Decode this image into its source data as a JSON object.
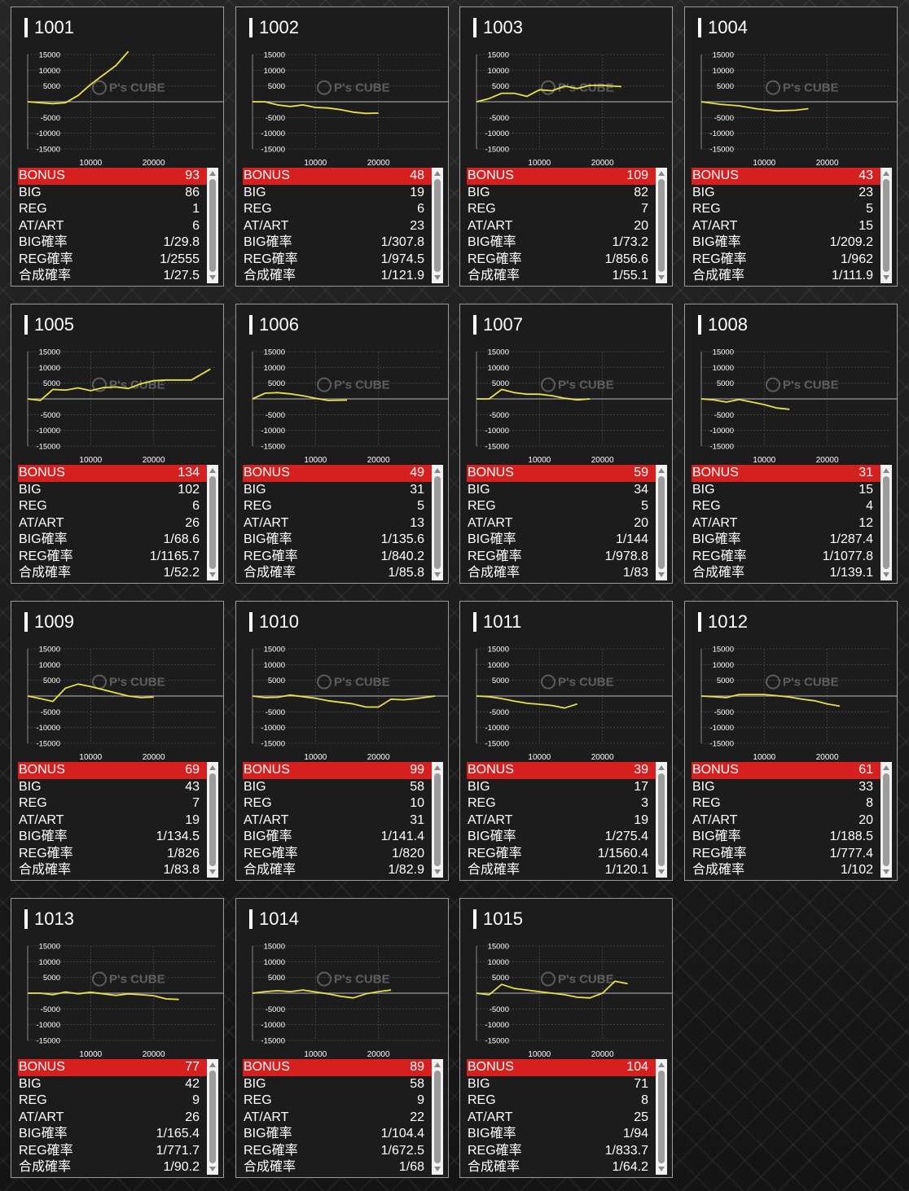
{
  "labels": {
    "bonus": "BONUS",
    "big": "BIG",
    "reg": "REG",
    "atart": "AT/ART",
    "big_rate": "BIG確率",
    "reg_rate": "REG確率",
    "total_rate": "合成確率"
  },
  "colors": {
    "line": "#e8e04a",
    "bonus_row": "#d61f1f",
    "card_bg": "#1c1c1c"
  },
  "icons": {
    "scroll_up": "triangle-up-icon",
    "scroll_down": "triangle-down-icon",
    "watermark": "ps-cube-logo"
  },
  "watermark": {
    "brand": "P's CUBE"
  },
  "machines": [
    {
      "name": "1001",
      "bonus": "93",
      "big": "86",
      "reg": "1",
      "atart": "6",
      "big_rate": "1/29.8",
      "reg_rate": "1/2555",
      "total_rate": "1/27.5"
    },
    {
      "name": "1002",
      "bonus": "48",
      "big": "19",
      "reg": "6",
      "atart": "23",
      "big_rate": "1/307.8",
      "reg_rate": "1/974.5",
      "total_rate": "1/121.9"
    },
    {
      "name": "1003",
      "bonus": "109",
      "big": "82",
      "reg": "7",
      "atart": "20",
      "big_rate": "1/73.2",
      "reg_rate": "1/856.6",
      "total_rate": "1/55.1"
    },
    {
      "name": "1004",
      "bonus": "43",
      "big": "23",
      "reg": "5",
      "atart": "15",
      "big_rate": "1/209.2",
      "reg_rate": "1/962",
      "total_rate": "1/111.9"
    },
    {
      "name": "1005",
      "bonus": "134",
      "big": "102",
      "reg": "6",
      "atart": "26",
      "big_rate": "1/68.6",
      "reg_rate": "1/1165.7",
      "total_rate": "1/52.2"
    },
    {
      "name": "1006",
      "bonus": "49",
      "big": "31",
      "reg": "5",
      "atart": "13",
      "big_rate": "1/135.6",
      "reg_rate": "1/840.2",
      "total_rate": "1/85.8"
    },
    {
      "name": "1007",
      "bonus": "59",
      "big": "34",
      "reg": "5",
      "atart": "20",
      "big_rate": "1/144",
      "reg_rate": "1/978.8",
      "total_rate": "1/83"
    },
    {
      "name": "1008",
      "bonus": "31",
      "big": "15",
      "reg": "4",
      "atart": "12",
      "big_rate": "1/287.4",
      "reg_rate": "1/1077.8",
      "total_rate": "1/139.1"
    },
    {
      "name": "1009",
      "bonus": "69",
      "big": "43",
      "reg": "7",
      "atart": "19",
      "big_rate": "1/134.5",
      "reg_rate": "1/826",
      "total_rate": "1/83.8"
    },
    {
      "name": "1010",
      "bonus": "99",
      "big": "58",
      "reg": "10",
      "atart": "31",
      "big_rate": "1/141.4",
      "reg_rate": "1/820",
      "total_rate": "1/82.9"
    },
    {
      "name": "1011",
      "bonus": "39",
      "big": "17",
      "reg": "3",
      "atart": "19",
      "big_rate": "1/275.4",
      "reg_rate": "1/1560.4",
      "total_rate": "1/120.1"
    },
    {
      "name": "1012",
      "bonus": "61",
      "big": "33",
      "reg": "8",
      "atart": "20",
      "big_rate": "1/188.5",
      "reg_rate": "1/777.4",
      "total_rate": "1/102"
    },
    {
      "name": "1013",
      "bonus": "77",
      "big": "42",
      "reg": "9",
      "atart": "26",
      "big_rate": "1/165.4",
      "reg_rate": "1/771.7",
      "total_rate": "1/90.2"
    },
    {
      "name": "1014",
      "bonus": "89",
      "big": "58",
      "reg": "9",
      "atart": "22",
      "big_rate": "1/104.4",
      "reg_rate": "1/672.5",
      "total_rate": "1/68"
    },
    {
      "name": "1015",
      "bonus": "104",
      "big": "71",
      "reg": "8",
      "atart": "25",
      "big_rate": "1/94",
      "reg_rate": "1/833.7",
      "total_rate": "1/64.2"
    }
  ],
  "chart_data": [
    {
      "type": "line",
      "title": "1001",
      "xlim": [
        0,
        30000
      ],
      "ylim": [
        -15000,
        15000
      ],
      "xticks": [
        10000,
        20000
      ],
      "yticks": [
        15000,
        10000,
        5000,
        -5000,
        -10000,
        -15000
      ],
      "x": [
        0,
        2000,
        4000,
        6000,
        8000,
        10000,
        12000,
        14000,
        16000
      ],
      "y": [
        0,
        -300,
        -600,
        -300,
        2000,
        5500,
        8500,
        11500,
        16000
      ]
    },
    {
      "type": "line",
      "title": "1002",
      "xlim": [
        0,
        30000
      ],
      "ylim": [
        -15000,
        15000
      ],
      "xticks": [
        10000,
        20000
      ],
      "yticks": [
        15000,
        10000,
        5000,
        -5000,
        -10000,
        -15000
      ],
      "x": [
        0,
        2000,
        4000,
        6000,
        8000,
        10000,
        12000,
        14000,
        16000,
        18000,
        20000
      ],
      "y": [
        0,
        0,
        -1000,
        -1500,
        -1000,
        -1800,
        -2000,
        -2500,
        -3300,
        -3700,
        -3600
      ]
    },
    {
      "type": "line",
      "title": "1003",
      "xlim": [
        0,
        30000
      ],
      "ylim": [
        -15000,
        15000
      ],
      "xticks": [
        10000,
        20000
      ],
      "yticks": [
        15000,
        10000,
        5000,
        -5000,
        -10000,
        -15000
      ],
      "x": [
        0,
        2000,
        4000,
        6000,
        8000,
        10000,
        12000,
        14000,
        16000,
        18000,
        20000,
        23000
      ],
      "y": [
        0,
        1000,
        2700,
        2700,
        1700,
        3800,
        3500,
        5000,
        4200,
        5200,
        5200,
        4800
      ]
    },
    {
      "type": "line",
      "title": "1004",
      "xlim": [
        0,
        30000
      ],
      "ylim": [
        -15000,
        15000
      ],
      "xticks": [
        10000,
        20000
      ],
      "yticks": [
        15000,
        10000,
        5000,
        -5000,
        -10000,
        -15000
      ],
      "x": [
        0,
        3000,
        6000,
        9000,
        12000,
        15000,
        17000
      ],
      "y": [
        0,
        -800,
        -1300,
        -2300,
        -2900,
        -2700,
        -2200
      ]
    },
    {
      "type": "line",
      "title": "1005",
      "xlim": [
        0,
        30000
      ],
      "ylim": [
        -15000,
        15000
      ],
      "xticks": [
        10000,
        20000
      ],
      "yticks": [
        15000,
        10000,
        5000,
        -5000,
        -10000,
        -15000
      ],
      "x": [
        0,
        2000,
        4000,
        6000,
        8000,
        10000,
        12000,
        14000,
        16000,
        18000,
        20000,
        22000,
        24000,
        26000,
        29000
      ],
      "y": [
        0,
        -500,
        3000,
        2800,
        3500,
        2600,
        3600,
        3800,
        3300,
        4800,
        5800,
        6000,
        6000,
        6000,
        9500
      ]
    },
    {
      "type": "line",
      "title": "1006",
      "xlim": [
        0,
        30000
      ],
      "ylim": [
        -15000,
        15000
      ],
      "xticks": [
        10000,
        20000
      ],
      "yticks": [
        15000,
        10000,
        5000,
        -5000,
        -10000,
        -15000
      ],
      "x": [
        0,
        2000,
        4000,
        6000,
        8000,
        10000,
        12000,
        15000
      ],
      "y": [
        0,
        1800,
        2000,
        1600,
        1000,
        200,
        -500,
        -400
      ]
    },
    {
      "type": "line",
      "title": "1007",
      "xlim": [
        0,
        30000
      ],
      "ylim": [
        -15000,
        15000
      ],
      "xticks": [
        10000,
        20000
      ],
      "yticks": [
        15000,
        10000,
        5000,
        -5000,
        -10000,
        -15000
      ],
      "x": [
        0,
        2000,
        4000,
        6000,
        8000,
        10000,
        12000,
        14000,
        16000,
        18000
      ],
      "y": [
        0,
        0,
        3000,
        2000,
        1500,
        1500,
        1000,
        200,
        -300,
        0
      ]
    },
    {
      "type": "line",
      "title": "1008",
      "xlim": [
        0,
        30000
      ],
      "ylim": [
        -15000,
        15000
      ],
      "xticks": [
        10000,
        20000
      ],
      "yticks": [
        15000,
        10000,
        5000,
        -5000,
        -10000,
        -15000
      ],
      "x": [
        0,
        2000,
        4000,
        6000,
        8000,
        10000,
        12000,
        14000
      ],
      "y": [
        0,
        -300,
        -1000,
        -200,
        -1000,
        -1800,
        -2900,
        -3300
      ]
    },
    {
      "type": "line",
      "title": "1009",
      "xlim": [
        0,
        30000
      ],
      "ylim": [
        -15000,
        15000
      ],
      "xticks": [
        10000,
        20000
      ],
      "yticks": [
        15000,
        10000,
        5000,
        -5000,
        -10000,
        -15000
      ],
      "x": [
        0,
        2000,
        4000,
        6000,
        8000,
        10000,
        12000,
        14000,
        16000,
        18000,
        20000
      ],
      "y": [
        0,
        -800,
        -1700,
        2500,
        3800,
        3000,
        2000,
        1000,
        0,
        -500,
        -300
      ]
    },
    {
      "type": "line",
      "title": "1010",
      "xlim": [
        0,
        30000
      ],
      "ylim": [
        -15000,
        15000
      ],
      "xticks": [
        10000,
        20000
      ],
      "yticks": [
        15000,
        10000,
        5000,
        -5000,
        -10000,
        -15000
      ],
      "x": [
        0,
        2000,
        4000,
        6000,
        8000,
        10000,
        12000,
        14000,
        16000,
        18000,
        20000,
        22000,
        24000,
        26000,
        29000
      ],
      "y": [
        0,
        -500,
        -400,
        300,
        -200,
        -700,
        -1500,
        -2000,
        -2500,
        -3500,
        -3500,
        -1000,
        -1200,
        -800,
        0
      ]
    },
    {
      "type": "line",
      "title": "1011",
      "xlim": [
        0,
        30000
      ],
      "ylim": [
        -15000,
        15000
      ],
      "xticks": [
        10000,
        20000
      ],
      "yticks": [
        15000,
        10000,
        5000,
        -5000,
        -10000,
        -15000
      ],
      "x": [
        0,
        2000,
        4000,
        6000,
        8000,
        10000,
        12000,
        14000,
        16000
      ],
      "y": [
        0,
        -200,
        -800,
        -1600,
        -2300,
        -2600,
        -3000,
        -3800,
        -2500
      ]
    },
    {
      "type": "line",
      "title": "1012",
      "xlim": [
        0,
        30000
      ],
      "ylim": [
        -15000,
        15000
      ],
      "xticks": [
        10000,
        20000
      ],
      "yticks": [
        15000,
        10000,
        5000,
        -5000,
        -10000,
        -15000
      ],
      "x": [
        0,
        2000,
        4000,
        6000,
        8000,
        10000,
        12000,
        14000,
        16000,
        18000,
        20000,
        22000
      ],
      "y": [
        0,
        -200,
        -500,
        500,
        500,
        500,
        100,
        -300,
        -1000,
        -1500,
        -2500,
        -3200
      ]
    },
    {
      "type": "line",
      "title": "1013",
      "xlim": [
        0,
        30000
      ],
      "ylim": [
        -15000,
        15000
      ],
      "xticks": [
        10000,
        20000
      ],
      "yticks": [
        15000,
        10000,
        5000,
        -5000,
        -10000,
        -15000
      ],
      "x": [
        0,
        2000,
        4000,
        6000,
        8000,
        10000,
        12000,
        14000,
        16000,
        18000,
        20000,
        22000,
        24000
      ],
      "y": [
        0,
        0,
        -500,
        400,
        -200,
        300,
        -200,
        -700,
        -200,
        -500,
        -800,
        -1800,
        -2000
      ]
    },
    {
      "type": "line",
      "title": "1014",
      "xlim": [
        0,
        30000
      ],
      "ylim": [
        -15000,
        15000
      ],
      "xticks": [
        10000,
        20000
      ],
      "yticks": [
        15000,
        10000,
        5000,
        -5000,
        -10000,
        -15000
      ],
      "x": [
        0,
        2000,
        4000,
        6000,
        8000,
        10000,
        12000,
        14000,
        16000,
        18000,
        20000,
        22000
      ],
      "y": [
        0,
        500,
        800,
        500,
        1000,
        400,
        -200,
        -1000,
        -1500,
        -200,
        500,
        1000
      ]
    },
    {
      "type": "line",
      "title": "1015",
      "xlim": [
        0,
        30000
      ],
      "ylim": [
        -15000,
        15000
      ],
      "xticks": [
        10000,
        20000
      ],
      "yticks": [
        15000,
        10000,
        5000,
        -5000,
        -10000,
        -15000
      ],
      "x": [
        0,
        2000,
        4000,
        6000,
        8000,
        10000,
        12000,
        14000,
        16000,
        18000,
        20000,
        22000,
        24000
      ],
      "y": [
        0,
        -500,
        2800,
        1500,
        1000,
        500,
        0,
        -500,
        -1300,
        -1500,
        0,
        3800,
        3000
      ]
    }
  ]
}
